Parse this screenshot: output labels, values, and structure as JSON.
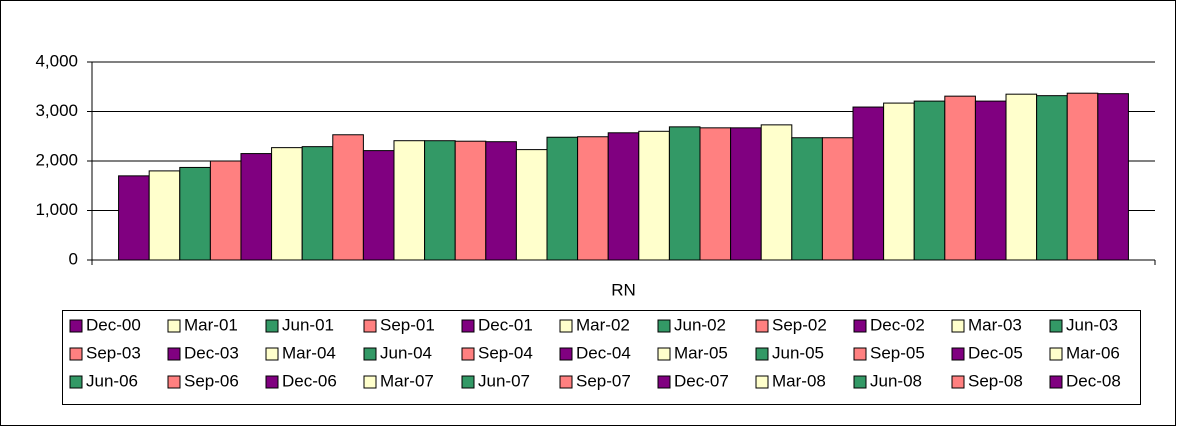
{
  "chart_data": {
    "type": "bar",
    "categories": [
      "RN"
    ],
    "series": [
      {
        "name": "Dec-00",
        "color": "#800080",
        "values": [
          1700
        ]
      },
      {
        "name": "Mar-01",
        "color": "#FFFFCC",
        "values": [
          1800
        ]
      },
      {
        "name": "Jun-01",
        "color": "#339966",
        "values": [
          1870
        ]
      },
      {
        "name": "Sep-01",
        "color": "#FF8080",
        "values": [
          2000
        ]
      },
      {
        "name": "Dec-01",
        "color": "#800080",
        "values": [
          2150
        ]
      },
      {
        "name": "Mar-02",
        "color": "#FFFFCC",
        "values": [
          2270
        ]
      },
      {
        "name": "Jun-02",
        "color": "#339966",
        "values": [
          2290
        ]
      },
      {
        "name": "Sep-02",
        "color": "#FF8080",
        "values": [
          2530
        ]
      },
      {
        "name": "Dec-02",
        "color": "#800080",
        "values": [
          2210
        ]
      },
      {
        "name": "Mar-03",
        "color": "#FFFFCC",
        "values": [
          2410
        ]
      },
      {
        "name": "Jun-03",
        "color": "#339966",
        "values": [
          2410
        ]
      },
      {
        "name": "Sep-03",
        "color": "#FF8080",
        "values": [
          2400
        ]
      },
      {
        "name": "Dec-03",
        "color": "#800080",
        "values": [
          2390
        ]
      },
      {
        "name": "Mar-04",
        "color": "#FFFFCC",
        "values": [
          2230
        ]
      },
      {
        "name": "Jun-04",
        "color": "#339966",
        "values": [
          2480
        ]
      },
      {
        "name": "Sep-04",
        "color": "#FF8080",
        "values": [
          2490
        ]
      },
      {
        "name": "Dec-04",
        "color": "#800080",
        "values": [
          2570
        ]
      },
      {
        "name": "Mar-05",
        "color": "#FFFFCC",
        "values": [
          2600
        ]
      },
      {
        "name": "Jun-05",
        "color": "#339966",
        "values": [
          2690
        ]
      },
      {
        "name": "Sep-05",
        "color": "#FF8080",
        "values": [
          2670
        ]
      },
      {
        "name": "Dec-05",
        "color": "#800080",
        "values": [
          2670
        ]
      },
      {
        "name": "Mar-06",
        "color": "#FFFFCC",
        "values": [
          2730
        ]
      },
      {
        "name": "Jun-06",
        "color": "#339966",
        "values": [
          2470
        ]
      },
      {
        "name": "Sep-06",
        "color": "#FF8080",
        "values": [
          2470
        ]
      },
      {
        "name": "Dec-06",
        "color": "#800080",
        "values": [
          3090
        ]
      },
      {
        "name": "Mar-07",
        "color": "#FFFFCC",
        "values": [
          3170
        ]
      },
      {
        "name": "Jun-07",
        "color": "#339966",
        "values": [
          3210
        ]
      },
      {
        "name": "Sep-07",
        "color": "#FF8080",
        "values": [
          3310
        ]
      },
      {
        "name": "Dec-07",
        "color": "#800080",
        "values": [
          3210
        ]
      },
      {
        "name": "Mar-08",
        "color": "#FFFFCC",
        "values": [
          3350
        ]
      },
      {
        "name": "Jun-08",
        "color": "#339966",
        "values": [
          3320
        ]
      },
      {
        "name": "Sep-08",
        "color": "#FF8080",
        "values": [
          3370
        ]
      },
      {
        "name": "Dec-08",
        "color": "#800080",
        "values": [
          3360
        ]
      }
    ],
    "ylim": [
      0,
      4000
    ],
    "yticks": [
      0,
      {
        "value": 1000,
        "label": "1,000"
      },
      {
        "value": 2000,
        "label": "2,000"
      },
      {
        "value": 3000,
        "label": "3,000"
      },
      {
        "value": 4000,
        "label": "4,000"
      }
    ],
    "grid": true,
    "legend": "bottom"
  }
}
